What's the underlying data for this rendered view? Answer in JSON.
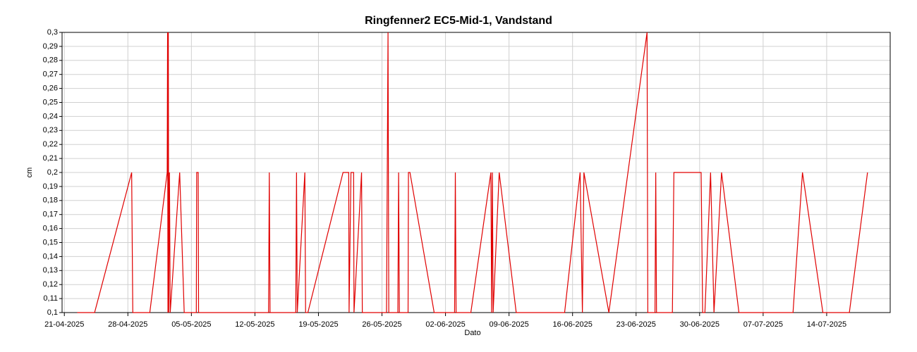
{
  "chart_data": {
    "type": "line",
    "title": "Ringfenner2 EC5-Mid-1, Vandstand",
    "xlabel": "Dato",
    "ylabel": "cm",
    "grid": true,
    "xlim": [
      "2025-04-20T18:00",
      "2025-07-21T00:00"
    ],
    "ylim": [
      0.1,
      0.3
    ],
    "xticks": [
      {
        "value": "2025-04-21",
        "label": "21-04-2025"
      },
      {
        "value": "2025-04-28",
        "label": "28-04-2025"
      },
      {
        "value": "2025-05-05",
        "label": "05-05-2025"
      },
      {
        "value": "2025-05-12",
        "label": "12-05-2025"
      },
      {
        "value": "2025-05-19",
        "label": "19-05-2025"
      },
      {
        "value": "2025-05-26",
        "label": "26-05-2025"
      },
      {
        "value": "2025-06-02",
        "label": "02-06-2025"
      },
      {
        "value": "2025-06-09",
        "label": "09-06-2025"
      },
      {
        "value": "2025-06-16",
        "label": "16-06-2025"
      },
      {
        "value": "2025-06-23",
        "label": "23-06-2025"
      },
      {
        "value": "2025-06-30",
        "label": "30-06-2025"
      },
      {
        "value": "2025-07-07",
        "label": "07-07-2025"
      },
      {
        "value": "2025-07-14",
        "label": "14-07-2025"
      }
    ],
    "yticks": [
      {
        "value": 0.1,
        "label": "0,1"
      },
      {
        "value": 0.11,
        "label": "0,11"
      },
      {
        "value": 0.12,
        "label": "0,12"
      },
      {
        "value": 0.13,
        "label": "0,13"
      },
      {
        "value": 0.14,
        "label": "0,14"
      },
      {
        "value": 0.15,
        "label": "0,15"
      },
      {
        "value": 0.16,
        "label": "0,16"
      },
      {
        "value": 0.17,
        "label": "0,17"
      },
      {
        "value": 0.18,
        "label": "0,18"
      },
      {
        "value": 0.19,
        "label": "0,19"
      },
      {
        "value": 0.2,
        "label": "0,2"
      },
      {
        "value": 0.21,
        "label": "0,21"
      },
      {
        "value": 0.22,
        "label": "0,22"
      },
      {
        "value": 0.23,
        "label": "0,23"
      },
      {
        "value": 0.24,
        "label": "0,24"
      },
      {
        "value": 0.25,
        "label": "0,25"
      },
      {
        "value": 0.26,
        "label": "0,26"
      },
      {
        "value": 0.27,
        "label": "0,27"
      },
      {
        "value": 0.28,
        "label": "0,28"
      },
      {
        "value": 0.29,
        "label": "0,29"
      },
      {
        "value": 0.3,
        "label": "0,3"
      }
    ],
    "x": [
      "2025-04-22T10:00",
      "2025-04-24T08:00",
      "2025-04-28T10:00",
      "2025-04-28T13:00",
      "2025-04-30T10:00",
      "2025-05-02T08:00",
      "2025-05-02T09:00",
      "2025-05-02T10:00",
      "2025-05-02T11:00",
      "2025-05-02T12:00",
      "2025-05-02T14:00",
      "2025-05-02T16:00",
      "2025-05-03T17:00",
      "2025-05-04T05:00",
      "2025-05-05T13:00",
      "2025-05-05T14:00",
      "2025-05-05T18:00",
      "2025-05-05T19:00",
      "2025-05-13T12:00",
      "2025-05-13T14:00",
      "2025-05-13T16:00",
      "2025-05-16T12:00",
      "2025-05-16T14:00",
      "2025-05-16T16:00",
      "2025-05-17T12:00",
      "2025-05-17T14:00",
      "2025-05-17T20:00",
      "2025-05-21T17:00",
      "2025-05-22T08:00",
      "2025-05-22T09:00",
      "2025-05-22T14:00",
      "2025-05-22T21:00",
      "2025-05-22T22:00",
      "2025-05-23T18:00",
      "2025-05-23T20:00",
      "2025-05-24T12:00",
      "2025-05-26T12:00",
      "2025-05-26T16:00",
      "2025-05-26T18:00",
      "2025-05-27T18:00",
      "2025-05-27T20:00",
      "2025-05-27T22:00",
      "2025-05-28T21:00",
      "2025-05-28T22:00",
      "2025-05-29T02:00",
      "2025-05-31T18:00",
      "2025-06-03T00:00",
      "2025-06-03T02:00",
      "2025-06-03T04:00",
      "2025-06-04T19:00",
      "2025-06-07T00:00",
      "2025-06-07T02:00",
      "2025-06-07T04:00",
      "2025-06-07T06:00",
      "2025-06-07T22:00",
      "2025-06-09T19:00",
      "2025-06-15T03:00",
      "2025-06-16T20:00",
      "2025-06-17T02:00",
      "2025-06-17T06:00",
      "2025-06-20T00:00",
      "2025-06-24T05:00",
      "2025-06-24T07:00",
      "2025-06-25T02:00",
      "2025-06-25T04:00",
      "2025-06-25T06:00",
      "2025-06-27T00:00",
      "2025-06-27T04:00",
      "2025-06-30T04:00",
      "2025-06-30T08:00",
      "2025-06-30T14:00",
      "2025-07-01T05:00",
      "2025-07-01T14:00",
      "2025-07-02T10:00",
      "2025-07-04T08:00",
      "2025-07-10T07:00",
      "2025-07-11T08:00",
      "2025-07-13T14:00",
      "2025-07-16T12:00",
      "2025-07-18T12:00"
    ],
    "series": [
      {
        "name": "Vandstand",
        "color": "#e00000",
        "values": [
          0.1,
          0.1,
          0.2,
          0.1,
          0.1,
          0.2,
          0.3,
          0.1,
          0.3,
          0.1,
          0.2,
          0.1,
          0.2,
          0.1,
          0.1,
          0.2,
          0.2,
          0.1,
          0.1,
          0.2,
          0.1,
          0.1,
          0.2,
          0.1,
          0.2,
          0.1,
          0.1,
          0.2,
          0.2,
          0.1,
          0.2,
          0.2,
          0.1,
          0.2,
          0.1,
          0.1,
          0.1,
          0.3,
          0.1,
          0.1,
          0.2,
          0.1,
          0.1,
          0.2,
          0.2,
          0.1,
          0.1,
          0.2,
          0.1,
          0.1,
          0.2,
          0.1,
          0.2,
          0.1,
          0.2,
          0.1,
          0.1,
          0.2,
          0.1,
          0.2,
          0.1,
          0.3,
          0.1,
          0.1,
          0.2,
          0.1,
          0.1,
          0.2,
          0.2,
          0.1,
          0.1,
          0.2,
          0.1,
          0.2,
          0.1,
          0.1,
          0.2,
          0.1,
          0.1,
          0.2
        ]
      }
    ]
  }
}
